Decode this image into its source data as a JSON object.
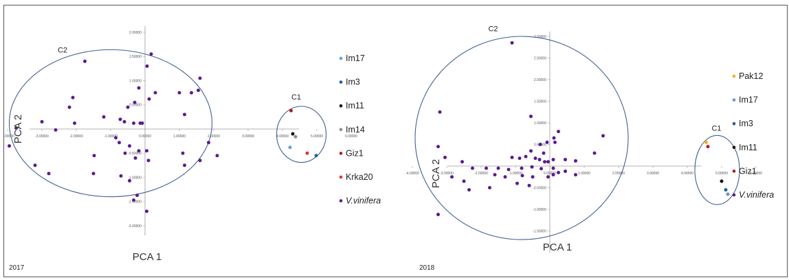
{
  "colors": {
    "violet": "#5b1a8e",
    "ellipse": "#3f5f8f",
    "Im17": "#5aa3d8",
    "Im17_2018": "#6f8fc8",
    "Im3": "#1f5f9a",
    "Im11": "#111111",
    "Im14": "#8c8c8c",
    "Giz1": "#b31b1b",
    "Krka20": "#e03030",
    "Pak12": "#f0b020"
  },
  "chart_data": [
    {
      "type": "scatter",
      "year": "2017",
      "xlabel": "PCA 1",
      "ylabel": "PCA 2",
      "xlim": [
        -4,
        6
      ],
      "ylim": [
        -2,
        2
      ],
      "x_ticks": [
        -4,
        -3,
        -2,
        -1,
        0,
        1,
        2,
        3,
        4,
        5,
        6
      ],
      "x_tick_labels": [
        "-4.00000",
        "-3.00000",
        "-2.00000",
        "-1.00000",
        "0.00000",
        "1.00000",
        "2.00000",
        "3.00000",
        "4.00000",
        "5.00000",
        "6.00000"
      ],
      "y_ticks": [
        2,
        1.5,
        1,
        0.5,
        -0.5,
        -1,
        -1.5,
        -2
      ],
      "y_tick_labels": [
        "2.00000",
        "1.50000",
        "1.00000",
        "0.50000",
        "-0.50000",
        "-1.00000",
        "-1.50000",
        "-2.00000"
      ],
      "clusters": [
        {
          "label": "C2",
          "cx": -1.0,
          "cy": 0.12,
          "rx": 2.95,
          "ry": 1.52,
          "label_x": -2.4,
          "label_y": 1.58
        },
        {
          "label": "C1",
          "cx": 4.55,
          "cy": -0.11,
          "rx": 0.72,
          "ry": 0.58,
          "label_x": 4.4,
          "label_y": 0.61
        }
      ],
      "legend": [
        {
          "label": "Im17",
          "color_key": "Im17",
          "italic": false
        },
        {
          "label": "Im3",
          "color_key": "Im3",
          "italic": false
        },
        {
          "label": "Im11",
          "color_key": "Im11",
          "italic": false
        },
        {
          "label": "Im14",
          "color_key": "Im14",
          "italic": false
        },
        {
          "label": "Giz1",
          "color_key": "Giz1",
          "italic": false
        },
        {
          "label": "Krka20",
          "color_key": "Krka20",
          "italic": false
        },
        {
          "label": "V.vinifera",
          "color_key": "violet",
          "italic": true
        }
      ],
      "series": [
        {
          "name": "Im17",
          "color_key": "Im17",
          "points": [
            [
              4.22,
              -0.38
            ]
          ]
        },
        {
          "name": "Im3",
          "color_key": "Im3",
          "points": [
            [
              4.98,
              -0.55
            ]
          ]
        },
        {
          "name": "Im11",
          "color_key": "Im11",
          "points": [
            [
              4.3,
              -0.1
            ]
          ]
        },
        {
          "name": "Im14",
          "color_key": "Im14",
          "points": [
            [
              4.38,
              -0.16
            ]
          ]
        },
        {
          "name": "Giz1",
          "color_key": "Giz1",
          "points": [
            [
              4.25,
              0.38
            ]
          ]
        },
        {
          "name": "Krka20",
          "color_key": "Krka20",
          "points": [
            [
              4.72,
              -0.5
            ]
          ]
        },
        {
          "name": "V.vinifera",
          "color_key": "violet",
          "points": [
            [
              0.18,
              1.55
            ],
            [
              0.06,
              1.3
            ],
            [
              -1.75,
              1.4
            ],
            [
              -0.18,
              0.85
            ],
            [
              -0.5,
              0.45
            ],
            [
              0.12,
              0.62
            ],
            [
              0.3,
              0.75
            ],
            [
              -2.1,
              0.65
            ],
            [
              -2.2,
              0.45
            ],
            [
              -0.3,
              0.55
            ],
            [
              1.0,
              0.75
            ],
            [
              1.35,
              0.75
            ],
            [
              1.6,
              1.05
            ],
            [
              1.55,
              0.8
            ],
            [
              1.15,
              0.3
            ],
            [
              -3.0,
              0.15
            ],
            [
              -2.05,
              0.12
            ],
            [
              -1.2,
              0.25
            ],
            [
              -0.72,
              0.2
            ],
            [
              -0.6,
              0.15
            ],
            [
              -0.33,
              0.12
            ],
            [
              -0.14,
              0.12
            ],
            [
              -0.08,
              0.12
            ],
            [
              -3.75,
              0.02
            ],
            [
              -2.6,
              -0.02
            ],
            [
              -0.85,
              -0.18
            ],
            [
              -0.75,
              -0.28
            ],
            [
              -0.45,
              -0.35
            ],
            [
              -0.58,
              -0.5
            ],
            [
              -1.48,
              -0.55
            ],
            [
              -0.28,
              -0.6
            ],
            [
              -0.18,
              -0.45
            ],
            [
              0.05,
              -0.45
            ],
            [
              0.1,
              -0.65
            ],
            [
              1.85,
              -0.28
            ],
            [
              2.1,
              -0.55
            ],
            [
              1.6,
              -0.65
            ],
            [
              1.1,
              -0.5
            ],
            [
              -3.95,
              -0.35
            ],
            [
              -3.2,
              -0.75
            ],
            [
              -2.8,
              -0.92
            ],
            [
              -1.5,
              -0.92
            ],
            [
              -0.7,
              -0.97
            ],
            [
              -0.45,
              -1.07
            ],
            [
              -0.23,
              -1.37
            ],
            [
              -0.33,
              -1.47
            ],
            [
              0.05,
              -1.7
            ],
            [
              1.15,
              -0.75
            ]
          ]
        }
      ]
    },
    {
      "type": "scatter",
      "year": "2018",
      "xlabel": "PCA 1",
      "ylabel": "PCA 2",
      "xlim": [
        -4,
        6
      ],
      "ylim": [
        -1.5,
        3
      ],
      "x_ticks": [
        -4,
        -3,
        -2,
        -1,
        0,
        1,
        2,
        3,
        4,
        5,
        6
      ],
      "x_tick_labels": [
        "-4.00000",
        "-3.00000",
        "-2.00000",
        "-1.00000",
        "0.00000",
        "1.00000",
        "2.00000",
        "3.00000",
        "4.00000",
        "5.00000",
        "6.00000"
      ],
      "y_ticks": [
        3,
        2.5,
        2,
        1.5,
        1,
        0.5,
        -0.5,
        -1,
        -1.5
      ],
      "y_tick_labels": [
        "3.00000",
        "2.50000",
        "2.00000",
        "1.50000",
        "1.00000",
        "0.50000",
        "-0.50000",
        "-1.00000",
        "-1.50000"
      ],
      "clusters": [
        {
          "label": "C2",
          "cx": -0.82,
          "cy": 0.65,
          "rx": 3.1,
          "ry": 2.35,
          "label_x": -1.65,
          "label_y": 3.12
        },
        {
          "label": "C1",
          "cx": 4.87,
          "cy": -0.09,
          "rx": 0.65,
          "ry": 0.8,
          "label_x": 4.85,
          "label_y": 0.82
        }
      ],
      "legend": [
        {
          "label": "Pak12",
          "color_key": "Pak12",
          "italic": false
        },
        {
          "label": "Im17",
          "color_key": "Im17_2018",
          "italic": false
        },
        {
          "label": "Im3",
          "color_key": "Im3",
          "italic": false
        },
        {
          "label": "Im11",
          "color_key": "Im11",
          "italic": false
        },
        {
          "label": "Giz1",
          "color_key": "Giz1",
          "italic": false
        },
        {
          "label": "V.vinifera",
          "color_key": "violet",
          "italic": true
        }
      ],
      "series": [
        {
          "name": "Pak12",
          "color_key": "Pak12",
          "points": [
            [
              4.55,
              0.55
            ]
          ]
        },
        {
          "name": "Im17",
          "color_key": "Im17_2018",
          "points": [
            [
              5.18,
              -0.65
            ]
          ]
        },
        {
          "name": "Im3",
          "color_key": "Im3",
          "points": [
            [
              5.12,
              -0.55
            ]
          ]
        },
        {
          "name": "Im11",
          "color_key": "Im11",
          "points": [
            [
              5.0,
              -0.35
            ]
          ]
        },
        {
          "name": "Giz1",
          "color_key": "Giz1",
          "points": [
            [
              4.6,
              0.45
            ]
          ]
        },
        {
          "name": "V.vinifera",
          "color_key": "violet",
          "points": [
            [
              -1.1,
              2.85
            ],
            [
              -3.2,
              1.25
            ],
            [
              -0.55,
              1.15
            ],
            [
              -3.25,
              0.45
            ],
            [
              0.25,
              0.8
            ],
            [
              0.12,
              0.65
            ],
            [
              0.15,
              0.55
            ],
            [
              1.55,
              0.7
            ],
            [
              -0.08,
              0.55
            ],
            [
              -0.28,
              0.5
            ],
            [
              -0.55,
              0.35
            ],
            [
              -0.18,
              0.3
            ],
            [
              -1.1,
              0.2
            ],
            [
              -0.88,
              0.18
            ],
            [
              -0.7,
              0.22
            ],
            [
              -0.42,
              0.18
            ],
            [
              -0.3,
              0.15
            ],
            [
              -0.15,
              0.1
            ],
            [
              -0.05,
              0.1
            ],
            [
              0.1,
              0.15
            ],
            [
              0.45,
              0.15
            ],
            [
              0.75,
              0.12
            ],
            [
              1.3,
              0.3
            ],
            [
              -2.55,
              0.1
            ],
            [
              -3.05,
              0.2
            ],
            [
              -2.25,
              -0.05
            ],
            [
              -1.85,
              -0.05
            ],
            [
              -1.5,
              -0.05
            ],
            [
              -1.2,
              -0.08
            ],
            [
              -0.82,
              -0.05
            ],
            [
              -0.52,
              -0.02
            ],
            [
              -0.25,
              -0.06
            ],
            [
              0.1,
              -0.05
            ],
            [
              0.45,
              -0.12
            ],
            [
              0.75,
              -0.2
            ],
            [
              -2.85,
              -0.25
            ],
            [
              -1.6,
              -0.2
            ],
            [
              -1.3,
              -0.25
            ],
            [
              -0.8,
              -0.22
            ],
            [
              -0.5,
              -0.25
            ],
            [
              0.1,
              -0.2
            ],
            [
              0.25,
              -0.15
            ],
            [
              -2.5,
              -0.35
            ],
            [
              -0.95,
              -0.4
            ],
            [
              -0.05,
              -0.25
            ],
            [
              -2.35,
              -0.55
            ],
            [
              -1.75,
              -0.5
            ],
            [
              -0.6,
              -0.45
            ],
            [
              -3.25,
              -1.12
            ]
          ]
        }
      ]
    }
  ]
}
